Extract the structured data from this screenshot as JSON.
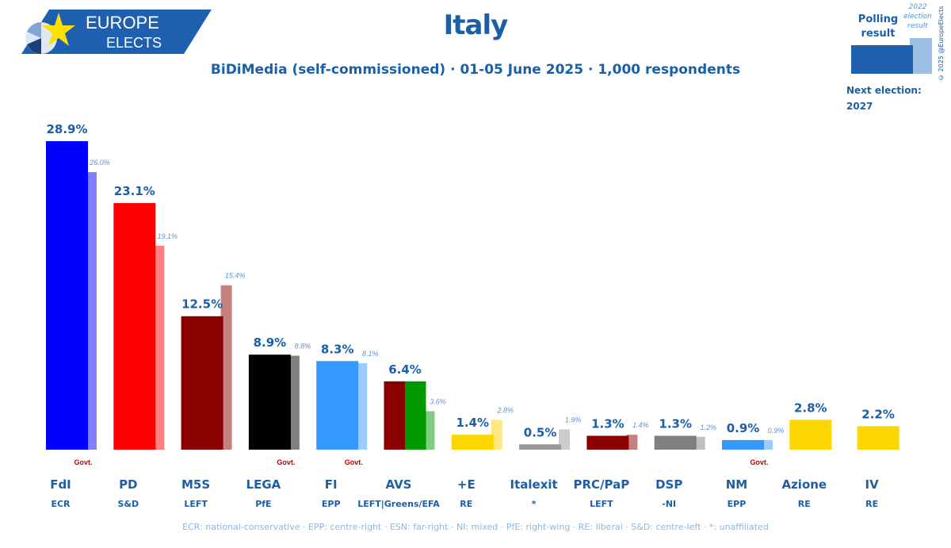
{
  "logo": {
    "line1": "EUROPE",
    "line2": "ELECTS"
  },
  "header": {
    "title": "Italy",
    "subtitle": "BiDiMedia (self-commissioned) · 01-05 June 2025 · 1,000 respondents"
  },
  "legend": {
    "poll_label": "Polling result",
    "result_label": "2022 election result",
    "next_election": "Next election:",
    "next_year": "2027",
    "copyright": "© 2025 @EuropeElects"
  },
  "footnote": "ECR: national-conservative · EPP: centre-right · ESN: far-right · NI: mixed · PfE: right-wing · RE: liberal · S&D: centre-left · *: unaffiliated",
  "chart_data": {
    "type": "bar",
    "title": "Italy",
    "categories": [
      "FdI",
      "PD",
      "M5S",
      "LEGA",
      "FI",
      "AVS",
      "+E",
      "Italexit",
      "PRC/PaP",
      "DSP",
      "NM",
      "Azione",
      "IV"
    ],
    "groups": [
      "ECR",
      "S&D",
      "LEFT",
      "PfE",
      "EPP",
      "LEFT|Greens/EFA",
      "RE",
      "*",
      "LEFT",
      "-NI",
      "EPP",
      "RE",
      "RE"
    ],
    "series": [
      {
        "name": "Polling result",
        "values": [
          28.9,
          23.1,
          12.5,
          8.9,
          8.3,
          6.4,
          1.4,
          0.5,
          1.3,
          1.3,
          0.9,
          2.8,
          2.2
        ],
        "labels": [
          "28.9%",
          "23.1%",
          "12.5%",
          "8.9%",
          "8.3%",
          "6.4%",
          "1.4%",
          "0.5%",
          "1.3%",
          "1.3%",
          "0.9%",
          "2.8%",
          "2.2%"
        ]
      },
      {
        "name": "2022 election result",
        "values": [
          26.0,
          19.1,
          15.4,
          8.8,
          8.1,
          3.6,
          2.8,
          1.9,
          1.4,
          1.2,
          0.9,
          null,
          null
        ],
        "labels": [
          "26.0%",
          "19.1%",
          "15.4%",
          "8.8%",
          "8.1%",
          "3.6%",
          "2.8%",
          "1.9%",
          "1.4%",
          "1.2%",
          "0.9%",
          "",
          ""
        ]
      }
    ],
    "govt": [
      true,
      false,
      false,
      true,
      true,
      false,
      false,
      false,
      false,
      false,
      true,
      false,
      false
    ],
    "govt_label": "Govt.",
    "colors": {
      "poll": [
        "#0000ff",
        "#ff0000",
        "#8b0000",
        "#000000",
        "#3399ff",
        [
          "#8b0000",
          "#009900"
        ],
        "#ffd700",
        "#999999",
        "#8b0000",
        "#808080",
        "#3399ff",
        "#ffd700",
        "#ffd700"
      ],
      "result": [
        "#8080ff",
        "#ff8080",
        "#c58080",
        "#808080",
        "#99ccff",
        "#80cc80",
        "#ffe880",
        "#cccccc",
        "#c58080",
        "#bfbfbf",
        "#99ccff",
        null,
        null
      ]
    },
    "ylim": [
      0,
      30
    ]
  }
}
